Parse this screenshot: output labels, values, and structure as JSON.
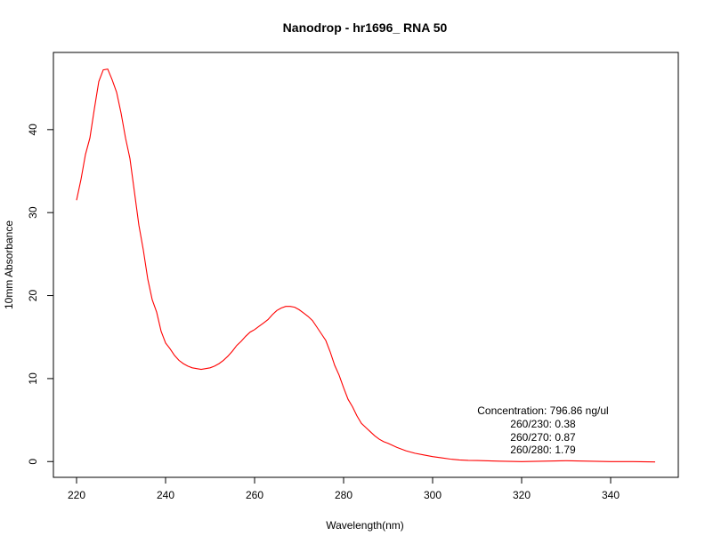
{
  "chart_data": {
    "type": "line",
    "title": "Nanodrop - hr1696_ RNA 50",
    "xlabel": "Wavelength(nm)",
    "ylabel": "10mm Absorbance",
    "xlim": [
      214.8,
      355.2
    ],
    "ylim": [
      -1.9,
      49.3
    ],
    "xticks": [
      220,
      240,
      260,
      280,
      300,
      320,
      340
    ],
    "yticks": [
      0,
      10,
      20,
      30,
      40
    ],
    "grid": false,
    "series": [
      {
        "color": "#ff0000",
        "x": [
          220,
          221,
          222,
          223,
          224,
          225,
          226,
          227,
          228,
          229,
          230,
          231,
          232,
          233,
          234,
          235,
          236,
          237,
          238,
          239,
          240,
          241,
          242,
          243,
          244,
          245,
          246,
          247,
          248,
          249,
          250,
          251,
          252,
          253,
          254,
          255,
          256,
          257,
          258,
          259,
          260,
          261,
          262,
          263,
          264,
          265,
          266,
          267,
          268,
          269,
          270,
          271,
          272,
          273,
          274,
          275,
          276,
          277,
          278,
          279,
          280,
          281,
          282,
          283,
          284,
          285,
          286,
          287,
          288,
          289,
          290,
          292,
          294,
          296,
          298,
          300,
          302,
          304,
          306,
          308,
          310,
          315,
          320,
          325,
          330,
          335,
          340,
          345,
          350
        ],
        "y": [
          31.5,
          34.0,
          37.0,
          39.0,
          42.5,
          45.8,
          47.2,
          47.3,
          46.0,
          44.5,
          42.0,
          39.0,
          36.5,
          32.5,
          28.5,
          25.5,
          22.0,
          19.5,
          18.0,
          15.7,
          14.3,
          13.6,
          12.8,
          12.2,
          11.8,
          11.5,
          11.3,
          11.2,
          11.1,
          11.2,
          11.3,
          11.5,
          11.8,
          12.2,
          12.7,
          13.3,
          14.0,
          14.5,
          15.1,
          15.6,
          15.9,
          16.3,
          16.7,
          17.1,
          17.7,
          18.2,
          18.5,
          18.7,
          18.7,
          18.6,
          18.3,
          17.9,
          17.5,
          17.0,
          16.2,
          15.4,
          14.6,
          13.2,
          11.6,
          10.4,
          8.9,
          7.5,
          6.6,
          5.5,
          4.6,
          4.1,
          3.6,
          3.1,
          2.7,
          2.4,
          2.2,
          1.7,
          1.3,
          1.0,
          0.8,
          0.6,
          0.45,
          0.3,
          0.2,
          0.15,
          0.12,
          0.05,
          0.0,
          0.05,
          0.1,
          0.05,
          0.0,
          0.0,
          -0.05
        ]
      }
    ],
    "annotation": {
      "lines": [
        "Concentration: 796.86 ng/ul",
        "260/230: 0.38",
        "260/270: 0.87",
        "260/280: 1.79"
      ]
    }
  }
}
